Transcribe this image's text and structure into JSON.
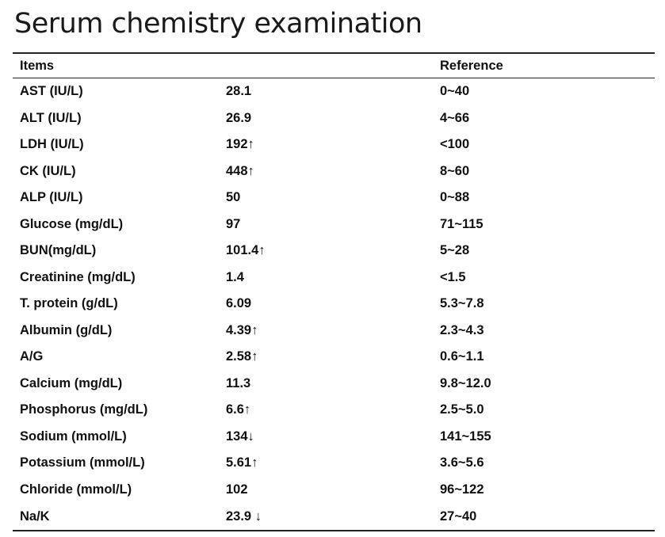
{
  "title": "Serum chemistry examination",
  "table": {
    "headers": {
      "items": "Items",
      "value": "",
      "reference": "Reference"
    },
    "rows": [
      {
        "item": "AST (IU/L)",
        "value": "28.1",
        "reference": "0~40"
      },
      {
        "item": "ALT (IU/L)",
        "value": "26.9",
        "reference": "4~66"
      },
      {
        "item": "LDH (IU/L)",
        "value": "192↑",
        "reference": "<100"
      },
      {
        "item": "CK (IU/L)",
        "value": "448↑",
        "reference": "8~60"
      },
      {
        "item": "ALP (IU/L)",
        "value": "50",
        "reference": "0~88"
      },
      {
        "item": "Glucose (mg/dL)",
        "value": "97",
        "reference": "71~115"
      },
      {
        "item": "BUN(mg/dL)",
        "value": "101.4↑",
        "reference": "5~28"
      },
      {
        "item": "Creatinine (mg/dL)",
        "value": "1.4",
        "reference": "<1.5"
      },
      {
        "item": "T. protein (g/dL)",
        "value": "6.09",
        "reference": "5.3~7.8"
      },
      {
        "item": "Albumin (g/dL)",
        "value": "4.39↑",
        "reference": "2.3~4.3"
      },
      {
        "item": "A/G",
        "value": "2.58↑",
        "reference": "0.6~1.1"
      },
      {
        "item": "Calcium (mg/dL)",
        "value": "11.3",
        "reference": "9.8~12.0"
      },
      {
        "item": "Phosphorus (mg/dL)",
        "value": "6.6↑",
        "reference": "2.5~5.0"
      },
      {
        "item": "Sodium (mmol/L)",
        "value": "134↓",
        "reference": "141~155"
      },
      {
        "item": "Potassium (mmol/L)",
        "value": "5.61↑",
        "reference": "3.6~5.6"
      },
      {
        "item": "Chloride (mmol/L)",
        "value": "102",
        "reference": "96~122"
      },
      {
        "item": "Na/K",
        "value": "23.9 ↓",
        "reference": "27~40"
      }
    ]
  }
}
